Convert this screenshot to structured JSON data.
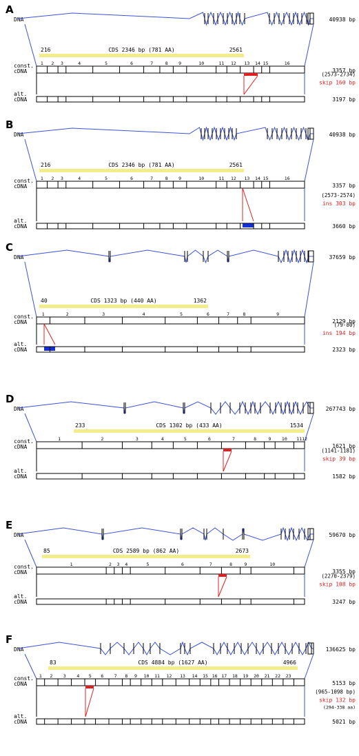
{
  "colors": {
    "dna_line": "#3a52d8",
    "cds_bar": "#f2ec8a",
    "skip": "#e02020",
    "insert": "#1430d8",
    "frame": "#000000",
    "green": "#22b022"
  },
  "labels": {
    "dna": "DNA",
    "const": "const.",
    "alt": "alt.",
    "cdna": "cDNA"
  },
  "panels": [
    {
      "letter": "A",
      "dna_length": "40938 bp",
      "cds_start": "216",
      "cds_end": "2561",
      "cds_text": "CDS 2346 bp (781 AA)",
      "exon_numbers": [
        "1",
        "2",
        "3",
        "4",
        "5",
        "6",
        "7",
        "8",
        "9",
        "10",
        "11",
        "12",
        "13",
        "14",
        "15",
        "16"
      ],
      "const_length": "3357 bp",
      "event_position": "(2573-2734)",
      "event": "skip 160 bp",
      "event_type": "skip",
      "alt_length": "3197 bp"
    },
    {
      "letter": "B",
      "dna_length": "40938 bp",
      "cds_start": "216",
      "cds_end": "2561",
      "cds_text": "CDS 2346 bp (781 AA)",
      "exon_numbers": [
        "1",
        "2",
        "3",
        "4",
        "5",
        "6",
        "7",
        "8",
        "9",
        "10",
        "11",
        "12",
        "13",
        "14",
        "15",
        "16"
      ],
      "const_length": "3357 bp",
      "event_position": "(2573-2574)",
      "event": "ins 303 bp",
      "event_type": "ins",
      "alt_length": "3660 bp"
    },
    {
      "letter": "C",
      "dna_length": "37659 bp",
      "cds_start": "40",
      "cds_end": "1362",
      "cds_text": "CDS 1323 bp (440 AA)",
      "exon_numbers": [
        "1",
        "2",
        "3",
        "4",
        "5",
        "6",
        "7",
        "8",
        "9"
      ],
      "const_length": "2129 bp",
      "event_position": "(79-80)",
      "event": "ins 194 bp",
      "event_type": "ins",
      "alt_length": "2323 bp"
    },
    {
      "letter": "D",
      "dna_length": "267743 bp",
      "cds_start": "233",
      "cds_end": "1534",
      "cds_text": "CDS 1302 bp (433 AA)",
      "exon_numbers": [
        "1",
        "2",
        "3",
        "4",
        "5",
        "6",
        "7",
        "8",
        "9",
        "10",
        "11",
        "12"
      ],
      "const_length": "1621 bp",
      "event_position": "(1141-1181)",
      "event": "skip 39 bp",
      "event_type": "skip",
      "alt_length": "1582 bp"
    },
    {
      "letter": "E",
      "dna_length": "59670 bp",
      "cds_start": "85",
      "cds_end": "2673",
      "cds_text": "CDS 2589 bp (862 AA)",
      "exon_numbers": [
        "1",
        "2",
        "3",
        "4",
        "5",
        "6",
        "7",
        "8",
        "9",
        "10"
      ],
      "const_length": "3355 bp",
      "event_position": "(2270-2379)",
      "event": "skip 108 bp",
      "event_type": "skip",
      "alt_length": "3247 bp"
    },
    {
      "letter": "F",
      "dna_length": "136625 bp",
      "cds_start": "83",
      "cds_end": "4966",
      "cds_text": "CDS 4884 bp (1627 AA)",
      "exon_numbers": [
        "1",
        "2",
        "3",
        "4",
        "5",
        "6",
        "7",
        "8",
        "9",
        "10",
        "11",
        "12",
        "13",
        "14",
        "15",
        "16",
        "17",
        "18",
        "19",
        "20",
        "21",
        "22",
        "23"
      ],
      "const_length": "5153 bp",
      "event_position": "(965-1098 bp)",
      "event": "skip 132 bp",
      "event_type": "skip",
      "event_position_aa": "(294-338 aa)",
      "alt_length": "5021 bp"
    }
  ]
}
